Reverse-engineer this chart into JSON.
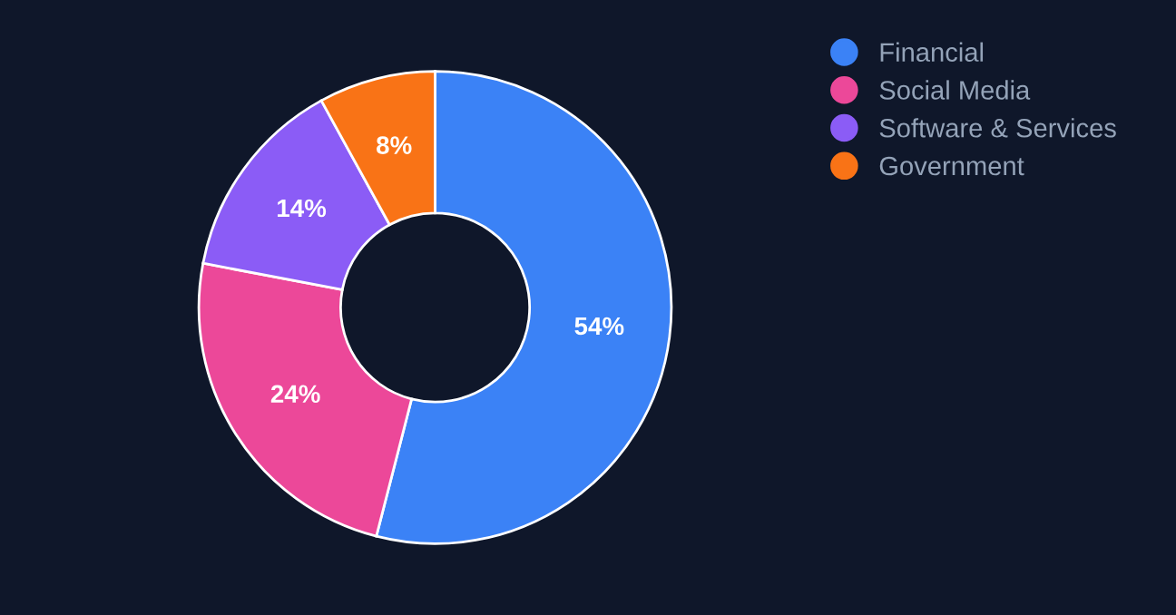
{
  "chart_data": {
    "type": "donut",
    "categories": [
      "Financial",
      "Social Media",
      "Software & Services",
      "Government"
    ],
    "values": [
      54,
      24,
      14,
      8
    ],
    "colors": [
      "#3b82f6",
      "#ec4899",
      "#8b5cf6",
      "#f97316"
    ],
    "value_labels": [
      "54%",
      "24%",
      "14%",
      "8%"
    ],
    "legend": "top right"
  }
}
